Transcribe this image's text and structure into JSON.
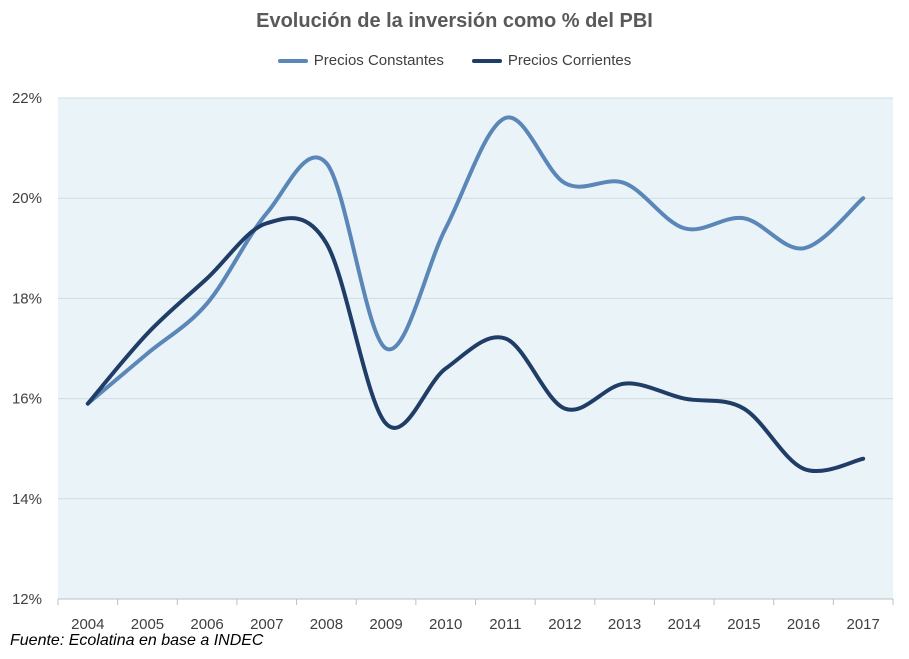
{
  "chart_data": {
    "type": "line",
    "title": "Evolución de la inversión como % del PBI",
    "x": [
      "2004",
      "2005",
      "2006",
      "2007",
      "2008",
      "2009",
      "2010",
      "2011",
      "2012",
      "2013",
      "2014",
      "2015",
      "2016",
      "2017"
    ],
    "series": [
      {
        "name": "Precios Constantes",
        "color": "#5b86b8",
        "values": [
          15.9,
          16.9,
          17.9,
          19.7,
          20.7,
          17.0,
          19.4,
          21.6,
          20.3,
          20.3,
          19.4,
          19.6,
          19.0,
          20.0
        ]
      },
      {
        "name": "Precios Corrientes",
        "color": "#1f3d66",
        "values": [
          15.9,
          17.3,
          18.4,
          19.5,
          19.1,
          15.5,
          16.6,
          17.2,
          15.8,
          16.3,
          16.0,
          15.8,
          14.6,
          14.8
        ]
      }
    ],
    "yticks": [
      "12%",
      "14%",
      "16%",
      "18%",
      "20%",
      "22%"
    ],
    "ylim": [
      12,
      22
    ],
    "grid": true,
    "legend": "top-center",
    "plot_background": "#eaf4f8"
  },
  "source_note": "Fuente: Ecolatina en base a INDEC"
}
